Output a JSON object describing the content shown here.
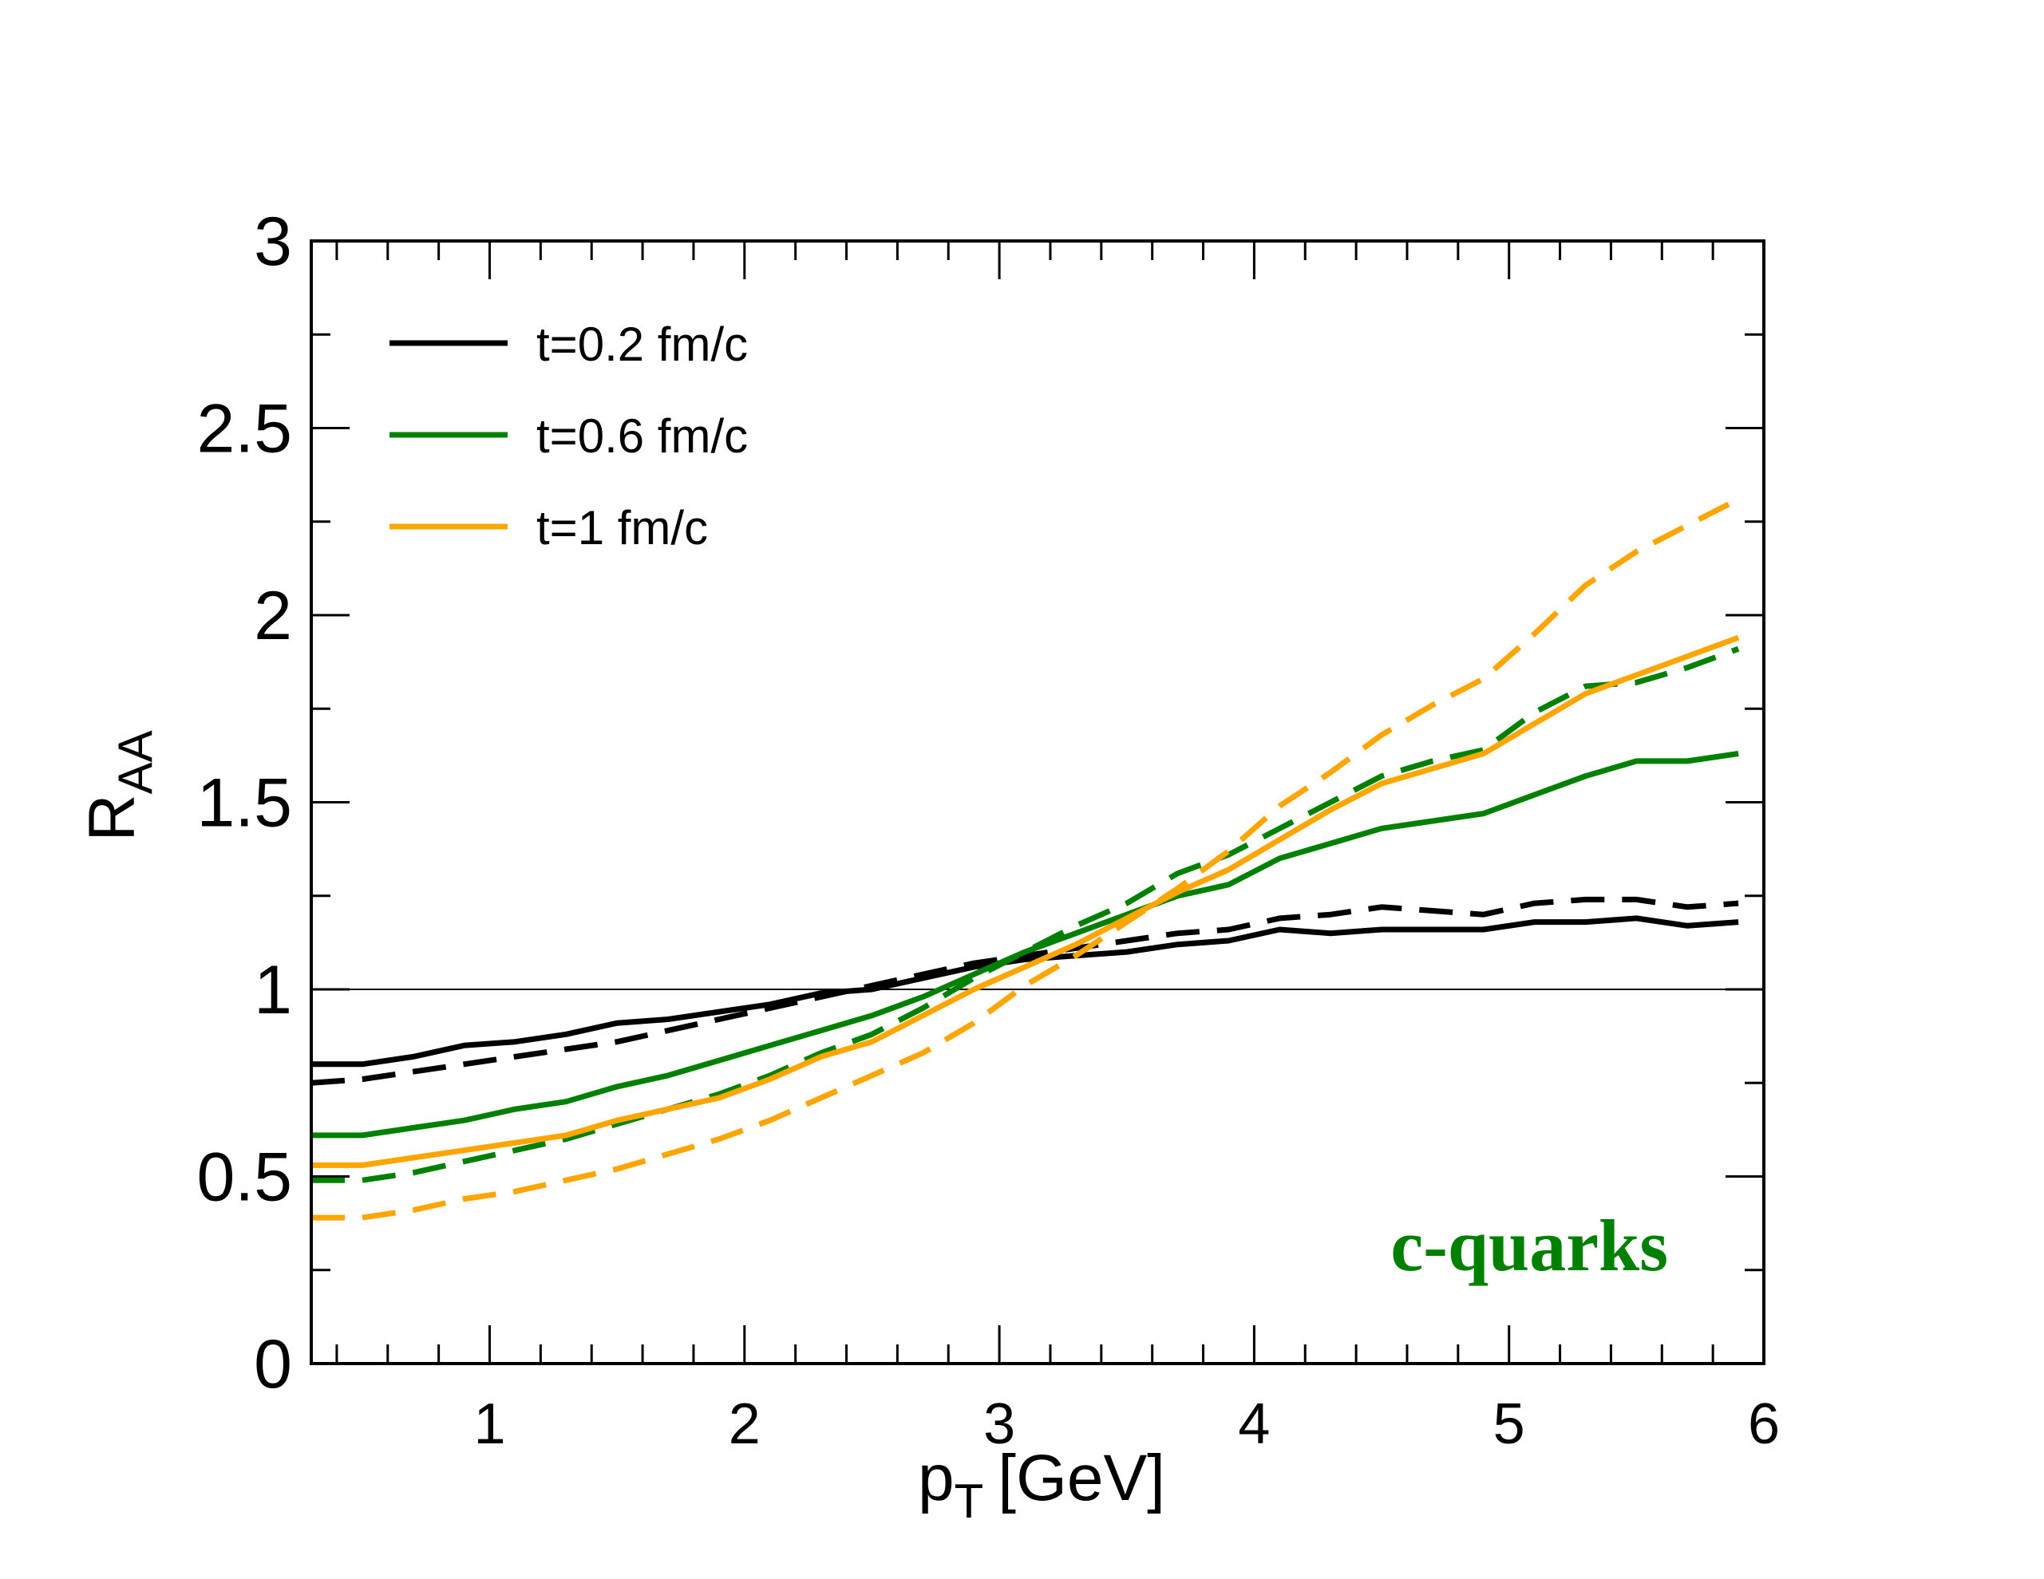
{
  "chart_data": {
    "type": "line",
    "xlabel": "p",
    "xlabel_sub": "T",
    "xlabel_unit": "[GeV]",
    "ylabel": "R",
    "ylabel_sub": "AA",
    "xlim": [
      0.3,
      6.0
    ],
    "ylim": [
      0,
      3
    ],
    "x_ticks": [
      1,
      2,
      3,
      4,
      5,
      6
    ],
    "y_ticks": [
      0,
      0.5,
      1,
      1.5,
      2,
      2.5,
      3
    ],
    "y_tick_labels": [
      "0",
      "0.5",
      "1",
      "1.5",
      "2",
      "2.5",
      "3"
    ],
    "x_minor_step": 0.2,
    "y_minor_step": 0.25,
    "reference_line": 1,
    "grid": false,
    "legend_position": "top-left",
    "legend": [
      {
        "label": "t=0.2 fm/c",
        "color": "#000000"
      },
      {
        "label": "t=0.6 fm/c",
        "color": "#008000"
      },
      {
        "label": "t=1 fm/c",
        "color": "#FFA500"
      }
    ],
    "annotation": {
      "text": "c-quarks",
      "color": "#008000",
      "position": "bottom-right"
    },
    "x": [
      0.3,
      0.5,
      0.7,
      0.9,
      1.1,
      1.3,
      1.5,
      1.7,
      1.9,
      2.1,
      2.3,
      2.5,
      2.7,
      2.9,
      3.1,
      3.3,
      3.5,
      3.7,
      3.9,
      4.1,
      4.3,
      4.5,
      4.7,
      4.9,
      5.1,
      5.3,
      5.5,
      5.7,
      5.9
    ],
    "series": [
      {
        "style": "solid",
        "color": "#000000",
        "values": [
          0.8,
          0.8,
          0.82,
          0.85,
          0.86,
          0.88,
          0.91,
          0.92,
          0.94,
          0.96,
          0.99,
          1.0,
          1.03,
          1.06,
          1.08,
          1.09,
          1.1,
          1.12,
          1.13,
          1.16,
          1.15,
          1.16,
          1.16,
          1.16,
          1.18,
          1.18,
          1.19,
          1.17,
          1.18
        ]
      },
      {
        "style": "dashed",
        "color": "#000000",
        "values": [
          0.75,
          0.76,
          0.78,
          0.8,
          0.82,
          0.84,
          0.86,
          0.89,
          0.92,
          0.95,
          0.98,
          1.01,
          1.04,
          1.07,
          1.09,
          1.11,
          1.13,
          1.15,
          1.16,
          1.19,
          1.2,
          1.22,
          1.21,
          1.2,
          1.23,
          1.24,
          1.24,
          1.22,
          1.23
        ]
      },
      {
        "style": "solid",
        "color": "#008000",
        "values": [
          0.61,
          0.61,
          0.63,
          0.65,
          0.68,
          0.7,
          0.74,
          0.77,
          0.81,
          0.85,
          0.89,
          0.93,
          0.98,
          1.04,
          1.1,
          1.15,
          1.2,
          1.25,
          1.28,
          1.35,
          1.39,
          1.43,
          1.45,
          1.47,
          1.52,
          1.57,
          1.61,
          1.61,
          1.63
        ]
      },
      {
        "style": "dashed",
        "color": "#008000",
        "values": [
          0.49,
          0.49,
          0.51,
          0.54,
          0.57,
          0.6,
          0.64,
          0.68,
          0.72,
          0.77,
          0.83,
          0.88,
          0.95,
          1.03,
          1.1,
          1.17,
          1.23,
          1.31,
          1.36,
          1.43,
          1.5,
          1.57,
          1.61,
          1.64,
          1.74,
          1.81,
          1.82,
          1.86,
          1.91
        ]
      },
      {
        "style": "solid",
        "color": "#FFA500",
        "values": [
          0.53,
          0.53,
          0.55,
          0.57,
          0.59,
          0.61,
          0.65,
          0.68,
          0.71,
          0.76,
          0.82,
          0.86,
          0.93,
          1.0,
          1.06,
          1.12,
          1.19,
          1.26,
          1.32,
          1.4,
          1.48,
          1.55,
          1.59,
          1.63,
          1.71,
          1.79,
          1.84,
          1.89,
          1.94
        ]
      },
      {
        "style": "dashed",
        "color": "#FFA500",
        "values": [
          0.39,
          0.39,
          0.41,
          0.44,
          0.46,
          0.49,
          0.52,
          0.56,
          0.6,
          0.65,
          0.71,
          0.77,
          0.83,
          0.91,
          1.01,
          1.09,
          1.18,
          1.27,
          1.37,
          1.49,
          1.58,
          1.68,
          1.76,
          1.83,
          1.95,
          2.08,
          2.17,
          2.24,
          2.31
        ]
      }
    ]
  }
}
